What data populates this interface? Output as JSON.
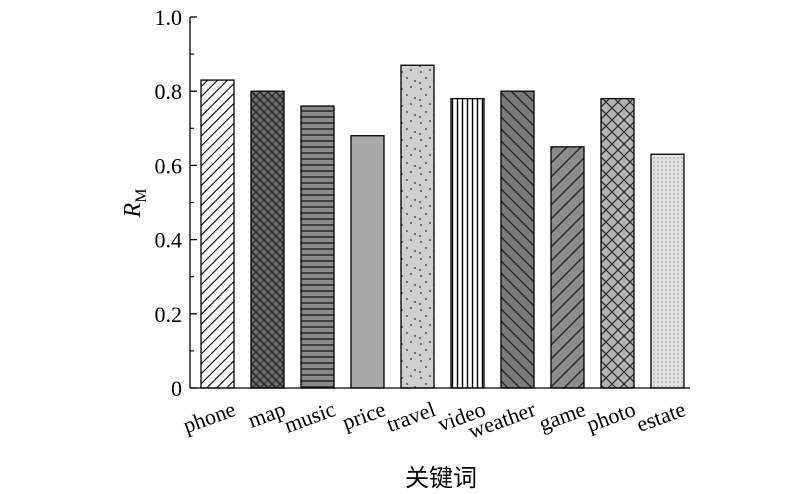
{
  "chart_data": {
    "type": "bar",
    "categories": [
      "phone",
      "map",
      "music",
      "price",
      "travel",
      "video",
      "weather",
      "game",
      "photo",
      "estate"
    ],
    "values": [
      0.83,
      0.8,
      0.76,
      0.68,
      0.87,
      0.78,
      0.8,
      0.65,
      0.78,
      0.63
    ],
    "patterns": [
      "diag-dense-up",
      "diag-cross-dark",
      "horizontal",
      "solid-gray",
      "dots",
      "vertical",
      "diag-down-dark",
      "diag-up-wide",
      "crosshatch",
      "fine-dots"
    ],
    "ylabel": {
      "main": "R",
      "subscript": "M"
    },
    "xlabel": "关键词",
    "ylim": [
      0,
      1.0
    ],
    "yticks": [
      0,
      0.2,
      0.4,
      0.6,
      0.8,
      1.0
    ],
    "ytick_labels": [
      "0",
      "0.2",
      "0.4",
      "0.6",
      "0.8",
      "1.0"
    ],
    "grid": false,
    "legend": "none"
  }
}
